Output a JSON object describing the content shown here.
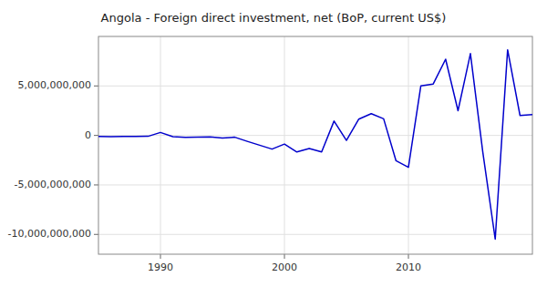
{
  "chart_data": {
    "type": "line",
    "title": "Angola - Foreign direct investment, net (BoP, current US$)",
    "x": [
      1985,
      1986,
      1987,
      1988,
      1989,
      1990,
      1991,
      1992,
      1993,
      1994,
      1995,
      1996,
      1997,
      1998,
      1999,
      2000,
      2001,
      2002,
      2003,
      2004,
      2005,
      2006,
      2007,
      2008,
      2009,
      2010,
      2011,
      2012,
      2013,
      2014,
      2015,
      2016,
      2017,
      2018,
      2019,
      2020
    ],
    "values": [
      -100000000,
      -120000000,
      -100000000,
      -110000000,
      -90000000,
      300000000,
      -130000000,
      -200000000,
      -170000000,
      -150000000,
      -270000000,
      -180000000,
      -600000000,
      -990000000,
      -1380000000,
      -878000000,
      -1670000000,
      -1320000000,
      -1672000000,
      1449000000,
      -500000000,
      1652000000,
      2200000000,
      1679000000,
      -2558000000,
      -3227000000,
      4996000000,
      5200000000,
      7700000000,
      2500000000,
      8265000000,
      -1700000000,
      -10472000000,
      8652000000,
      2014000000,
      2100000000
    ],
    "color": "#0000CC",
    "xlim": [
      1985,
      2020
    ],
    "ylim": [
      -12000000000,
      10000000000
    ],
    "xticks": [
      1990,
      2000,
      2010
    ],
    "yticks": [
      {
        "value": -10000000000,
        "label": "-10,000,000,000"
      },
      {
        "value": -5000000000,
        "label": "-5,000,000,000"
      },
      0,
      {
        "value": 5000000000,
        "label": "5,000,000,000"
      }
    ],
    "grid": true
  }
}
